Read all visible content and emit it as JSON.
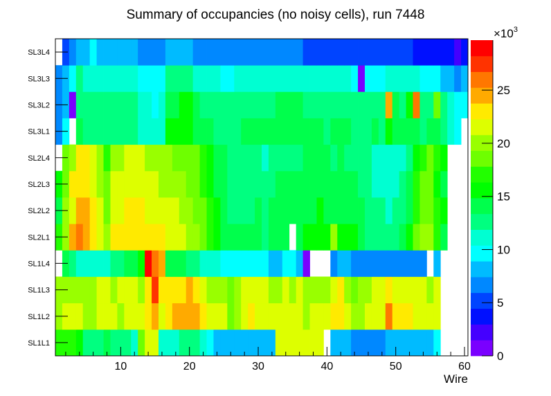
{
  "chart_data": {
    "type": "heatmap",
    "title": "Summary of occupancies (no noisy cells), run 7448",
    "xlabel": "Wire",
    "ylabel": "",
    "xlim": [
      0.5,
      60.5
    ],
    "x_ticks": [
      "10",
      "20",
      "30",
      "40",
      "50",
      "60"
    ],
    "x_tick_values": [
      10,
      20,
      30,
      40,
      50,
      60
    ],
    "z_label_multiplier": "×10",
    "z_label_exponent": "3",
    "z_units_note": "values in thousands",
    "zlim": [
      0,
      29.7
    ],
    "z_ticks": [
      "0",
      "5",
      "10",
      "15",
      "20",
      "25"
    ],
    "z_tick_values": [
      0,
      5,
      10,
      15,
      20,
      25
    ],
    "z_levels": 20,
    "palette": [
      "#7a00ff",
      "#4400ff",
      "#0010ff",
      "#0044ff",
      "#0088ff",
      "#00bbff",
      "#00ffff",
      "#00ffd2",
      "#00ff80",
      "#00ff4c",
      "#00ff00",
      "#22ff00",
      "#6eff00",
      "#99ff00",
      "#ddff00",
      "#ffea00",
      "#ffaa00",
      "#ff7700",
      "#ff3300",
      "#ff0000"
    ],
    "y_categories": [
      "SL1L1",
      "SL1L2",
      "SL1L3",
      "SL1L4",
      "SL2L1",
      "SL2L2",
      "SL2L3",
      "SL2L4",
      "SL3L1",
      "SL3L2",
      "SL3L3",
      "SL3L4"
    ],
    "z": {
      "SL3L4": [
        null,
        5.2,
        6.7,
        8.2,
        8.2,
        9.7,
        8.2,
        8.2,
        8.2,
        8.2,
        8.2,
        8.2,
        6.7,
        6.7,
        6.7,
        6.7,
        8.2,
        8.2,
        8.2,
        8.2,
        6.7,
        6.7,
        6.7,
        6.7,
        6.7,
        6.7,
        6.7,
        6.7,
        6.7,
        6.7,
        6.7,
        6.7,
        6.7,
        6.7,
        6.7,
        6.7,
        5.2,
        5.2,
        5.2,
        5.2,
        5.2,
        5.2,
        5.2,
        5.2,
        5.2,
        5.2,
        5.2,
        5.2,
        5.2,
        5.2,
        5.2,
        5.2,
        3.7,
        3.7,
        3.7,
        3.7,
        3.7,
        3.7,
        2.2,
        3.7
      ],
      "SL3L3": [
        6.7,
        8.2,
        9.7,
        12.6,
        11.1,
        11.1,
        11.1,
        11.1,
        11.1,
        11.1,
        11.1,
        11.1,
        9.7,
        9.7,
        9.7,
        9.7,
        12.6,
        12.6,
        12.6,
        12.6,
        11.1,
        11.1,
        11.1,
        11.1,
        9.7,
        9.7,
        11.1,
        11.1,
        11.1,
        11.1,
        11.1,
        11.1,
        11.1,
        11.1,
        11.1,
        11.1,
        11.1,
        11.1,
        11.1,
        11.1,
        11.1,
        11.1,
        11.1,
        9.7,
        0.7,
        9.7,
        9.7,
        9.7,
        11.1,
        11.1,
        11.1,
        11.1,
        11.1,
        9.7,
        9.7,
        9.7,
        8.2,
        8.2,
        6.7,
        8.2
      ],
      "SL3L2": [
        6.7,
        8.2,
        0.7,
        12.6,
        12.6,
        12.6,
        12.6,
        12.6,
        12.6,
        12.6,
        12.6,
        12.6,
        11.1,
        11.1,
        9.7,
        11.1,
        14.1,
        14.1,
        15.6,
        15.6,
        14.1,
        12.6,
        12.6,
        12.6,
        12.6,
        12.6,
        12.6,
        12.6,
        12.6,
        12.6,
        12.6,
        12.6,
        14.1,
        14.1,
        14.1,
        14.1,
        12.6,
        12.6,
        12.6,
        12.6,
        12.6,
        12.6,
        12.6,
        12.6,
        12.6,
        12.6,
        12.6,
        12.6,
        24.5,
        14.1,
        12.6,
        15.6,
        26.0,
        12.6,
        12.6,
        18.6,
        12.6,
        11.1,
        9.7,
        9.7
      ],
      "SL3L1": [
        6.7,
        9.7,
        null,
        14.1,
        12.6,
        12.6,
        12.6,
        12.6,
        12.6,
        12.6,
        12.6,
        12.6,
        11.1,
        11.1,
        11.1,
        11.1,
        15.6,
        15.6,
        15.6,
        15.6,
        14.1,
        14.1,
        14.1,
        12.6,
        12.6,
        12.6,
        12.6,
        14.1,
        14.1,
        14.1,
        14.1,
        14.1,
        14.1,
        14.1,
        14.1,
        14.1,
        14.1,
        14.1,
        14.1,
        12.6,
        14.1,
        14.1,
        14.1,
        12.6,
        12.6,
        12.6,
        14.1,
        12.6,
        15.6,
        14.1,
        14.1,
        14.1,
        14.1,
        12.6,
        14.1,
        14.1,
        12.6,
        11.1,
        9.7,
        null
      ],
      "SL2L4": [
        null,
        18.6,
        20.0,
        23.0,
        23.0,
        21.5,
        20.0,
        17.1,
        20.0,
        20.0,
        21.5,
        21.5,
        21.5,
        20.0,
        20.0,
        20.0,
        20.0,
        18.6,
        18.6,
        18.6,
        18.6,
        17.1,
        15.6,
        14.1,
        14.1,
        12.6,
        12.6,
        12.6,
        12.6,
        12.6,
        11.1,
        12.6,
        12.6,
        12.6,
        12.6,
        12.6,
        14.1,
        14.1,
        14.1,
        14.1,
        12.6,
        14.1,
        12.6,
        12.6,
        12.6,
        12.6,
        11.1,
        11.1,
        11.1,
        11.1,
        11.1,
        12.6,
        15.6,
        17.1,
        18.6,
        17.1,
        15.6,
        null,
        null,
        null
      ],
      "SL2L3": [
        15.6,
        18.6,
        23.0,
        23.0,
        23.0,
        21.5,
        20.0,
        18.6,
        21.5,
        21.5,
        21.5,
        21.5,
        21.5,
        21.5,
        21.5,
        20.0,
        20.0,
        20.0,
        20.0,
        18.6,
        18.6,
        17.1,
        15.6,
        14.1,
        14.1,
        12.6,
        12.6,
        12.6,
        12.6,
        12.6,
        12.6,
        12.6,
        14.1,
        14.1,
        14.1,
        14.1,
        14.1,
        14.1,
        14.1,
        14.1,
        14.1,
        14.1,
        14.1,
        14.1,
        12.6,
        12.6,
        11.1,
        11.1,
        11.1,
        11.1,
        12.6,
        14.1,
        17.1,
        18.6,
        18.6,
        15.6,
        14.1,
        null,
        null,
        null
      ],
      "SL2L2": [
        14.1,
        20.0,
        21.5,
        24.5,
        24.5,
        23.0,
        21.5,
        18.6,
        21.5,
        21.5,
        23.0,
        23.0,
        23.0,
        21.5,
        21.5,
        21.5,
        21.5,
        21.5,
        20.0,
        20.0,
        18.6,
        18.6,
        17.1,
        15.6,
        14.1,
        12.6,
        12.6,
        12.6,
        12.6,
        14.1,
        12.6,
        14.1,
        14.1,
        14.1,
        14.1,
        14.1,
        14.1,
        14.1,
        15.6,
        14.1,
        14.1,
        14.1,
        14.1,
        14.1,
        14.1,
        12.6,
        12.6,
        12.6,
        11.1,
        12.6,
        12.6,
        14.1,
        17.1,
        18.6,
        18.6,
        17.1,
        15.6,
        null,
        null,
        null
      ],
      "SL2L1": [
        17.1,
        20.0,
        24.5,
        26.0,
        24.5,
        23.0,
        21.5,
        20.0,
        23.0,
        23.0,
        23.0,
        23.0,
        23.0,
        23.0,
        23.0,
        23.0,
        21.5,
        21.5,
        21.5,
        20.0,
        20.0,
        18.6,
        17.1,
        15.6,
        14.1,
        14.1,
        14.1,
        14.1,
        14.1,
        14.1,
        12.6,
        14.1,
        14.1,
        14.1,
        null,
        14.1,
        15.6,
        15.6,
        15.6,
        15.6,
        20.0,
        15.6,
        15.6,
        15.6,
        14.1,
        12.6,
        12.6,
        12.6,
        12.6,
        12.6,
        14.1,
        15.6,
        18.6,
        20.0,
        20.0,
        17.1,
        14.1,
        null,
        null,
        null
      ],
      "SL1L4": [
        null,
        14.1,
        12.6,
        11.1,
        11.1,
        11.1,
        11.1,
        11.1,
        12.6,
        12.6,
        14.1,
        14.1,
        15.6,
        29.0,
        26.0,
        24.5,
        14.1,
        14.1,
        14.1,
        12.6,
        12.6,
        11.1,
        11.1,
        11.1,
        9.7,
        9.7,
        9.7,
        9.7,
        9.7,
        9.7,
        9.7,
        8.2,
        8.2,
        9.7,
        9.7,
        8.2,
        0.7,
        null,
        null,
        null,
        6.7,
        8.2,
        8.2,
        6.7,
        6.7,
        6.7,
        6.7,
        6.7,
        6.7,
        6.7,
        6.7,
        6.7,
        6.7,
        6.7,
        null,
        8.2,
        null,
        null,
        null,
        null
      ],
      "SL1L3": [
        20.0,
        20.0,
        20.0,
        20.0,
        20.0,
        20.0,
        21.5,
        21.5,
        20.0,
        21.5,
        21.5,
        21.5,
        20.0,
        23.0,
        27.5,
        23.0,
        23.0,
        23.0,
        23.0,
        24.5,
        23.0,
        21.5,
        20.0,
        20.0,
        20.0,
        18.6,
        20.0,
        21.5,
        21.5,
        21.5,
        21.5,
        20.0,
        20.0,
        21.5,
        20.0,
        21.5,
        20.0,
        20.0,
        20.0,
        20.0,
        21.5,
        23.0,
        20.0,
        18.6,
        20.0,
        20.0,
        21.5,
        21.5,
        23.0,
        21.5,
        21.5,
        21.5,
        21.5,
        21.5,
        20.0,
        21.5,
        null,
        null,
        null,
        null
      ],
      "SL1L2": [
        20.0,
        21.5,
        21.5,
        21.5,
        20.0,
        20.0,
        21.5,
        21.5,
        21.5,
        20.0,
        21.5,
        21.5,
        21.5,
        23.0,
        24.5,
        21.5,
        23.0,
        24.5,
        24.5,
        24.5,
        24.5,
        23.0,
        21.5,
        21.5,
        21.5,
        18.6,
        20.0,
        21.5,
        23.0,
        21.5,
        21.5,
        21.5,
        21.5,
        21.5,
        21.5,
        21.5,
        20.0,
        21.5,
        21.5,
        21.5,
        23.0,
        23.0,
        21.5,
        20.0,
        20.0,
        21.5,
        21.5,
        21.5,
        26.0,
        23.0,
        23.0,
        23.0,
        21.5,
        21.5,
        21.5,
        21.5,
        null,
        null,
        null,
        null
      ],
      "SL1L1": [
        17.1,
        17.1,
        17.1,
        15.6,
        12.6,
        12.6,
        12.6,
        14.1,
        12.6,
        12.6,
        12.6,
        11.1,
        18.6,
        21.5,
        21.5,
        11.1,
        11.1,
        11.1,
        12.6,
        12.6,
        12.6,
        11.1,
        9.7,
        8.2,
        8.2,
        8.2,
        8.2,
        8.2,
        8.2,
        8.2,
        8.2,
        8.2,
        21.5,
        21.5,
        21.5,
        21.5,
        21.5,
        21.5,
        21.5,
        null,
        8.2,
        8.2,
        8.2,
        6.7,
        6.7,
        6.7,
        6.7,
        6.7,
        8.2,
        8.2,
        8.2,
        8.2,
        8.2,
        8.2,
        8.2,
        9.7,
        null,
        null,
        null,
        null
      ]
    }
  }
}
